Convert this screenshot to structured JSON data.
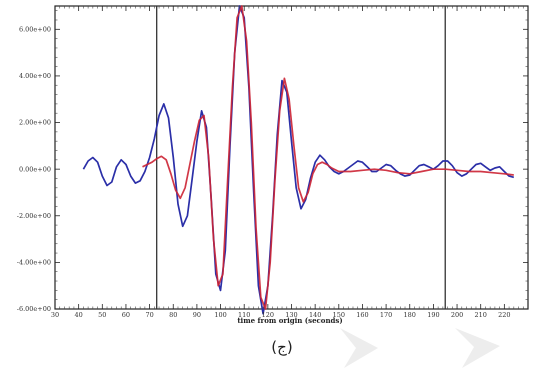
{
  "chart_data": {
    "type": "line",
    "xlabel": "time from origin (seconds)",
    "ylabel": "",
    "xlim": [
      30,
      230
    ],
    "ylim": [
      -6.0,
      7.0
    ],
    "x_ticks": [
      30,
      40,
      50,
      60,
      70,
      80,
      90,
      100,
      110,
      120,
      130,
      140,
      150,
      160,
      170,
      180,
      190,
      200,
      210,
      220
    ],
    "x_tick_labels": [
      "30",
      "40",
      "50",
      "60",
      "70",
      "80",
      "90",
      "100",
      "110",
      "120",
      "130",
      "140",
      "150",
      "160",
      "170",
      "180",
      "190",
      "200",
      "210",
      "220"
    ],
    "y_ticks": [
      -6,
      -4,
      -2,
      0,
      2,
      4,
      6
    ],
    "y_tick_labels": [
      "-6.00e+00",
      "-4.00e+00",
      "-2.00e+00",
      "0.00e+00",
      "2.00e+00",
      "4.00e+00",
      "6.00e+00"
    ],
    "vertical_lines": [
      73,
      195
    ],
    "series": [
      {
        "color": "#2b2fa8",
        "points": [
          [
            42,
            0.0
          ],
          [
            44,
            0.35
          ],
          [
            46,
            0.5
          ],
          [
            48,
            0.3
          ],
          [
            50,
            -0.3
          ],
          [
            52,
            -0.7
          ],
          [
            54,
            -0.55
          ],
          [
            56,
            0.1
          ],
          [
            58,
            0.4
          ],
          [
            60,
            0.2
          ],
          [
            62,
            -0.3
          ],
          [
            64,
            -0.6
          ],
          [
            66,
            -0.5
          ],
          [
            68,
            -0.1
          ],
          [
            70,
            0.5
          ],
          [
            72,
            1.3
          ],
          [
            74,
            2.3
          ],
          [
            76,
            2.8
          ],
          [
            78,
            2.2
          ],
          [
            80,
            0.5
          ],
          [
            82,
            -1.5
          ],
          [
            84,
            -2.45
          ],
          [
            86,
            -2.0
          ],
          [
            88,
            -0.4
          ],
          [
            90,
            1.2
          ],
          [
            92,
            2.5
          ],
          [
            94,
            1.8
          ],
          [
            96,
            -1.2
          ],
          [
            98,
            -4.5
          ],
          [
            100,
            -5.2
          ],
          [
            102,
            -3.5
          ],
          [
            104,
            1.0
          ],
          [
            106,
            5.0
          ],
          [
            108,
            7.0
          ],
          [
            110,
            6.5
          ],
          [
            112,
            3.5
          ],
          [
            114,
            -1.0
          ],
          [
            116,
            -5.0
          ],
          [
            118,
            -6.2
          ],
          [
            120,
            -5.0
          ],
          [
            122,
            -2.0
          ],
          [
            124,
            1.5
          ],
          [
            126,
            3.8
          ],
          [
            128,
            3.3
          ],
          [
            130,
            1.2
          ],
          [
            132,
            -0.8
          ],
          [
            134,
            -1.7
          ],
          [
            136,
            -1.3
          ],
          [
            138,
            -0.4
          ],
          [
            140,
            0.3
          ],
          [
            142,
            0.6
          ],
          [
            144,
            0.4
          ],
          [
            146,
            0.1
          ],
          [
            148,
            -0.1
          ],
          [
            150,
            -0.2
          ],
          [
            152,
            -0.1
          ],
          [
            154,
            0.05
          ],
          [
            156,
            0.2
          ],
          [
            158,
            0.35
          ],
          [
            160,
            0.3
          ],
          [
            162,
            0.1
          ],
          [
            164,
            -0.1
          ],
          [
            166,
            -0.1
          ],
          [
            168,
            0.05
          ],
          [
            170,
            0.2
          ],
          [
            172,
            0.15
          ],
          [
            174,
            -0.05
          ],
          [
            176,
            -0.2
          ],
          [
            178,
            -0.3
          ],
          [
            180,
            -0.25
          ],
          [
            182,
            -0.05
          ],
          [
            184,
            0.15
          ],
          [
            186,
            0.2
          ],
          [
            188,
            0.1
          ],
          [
            190,
            0.0
          ],
          [
            192,
            0.15
          ],
          [
            194,
            0.35
          ],
          [
            196,
            0.35
          ],
          [
            198,
            0.15
          ],
          [
            200,
            -0.15
          ],
          [
            202,
            -0.3
          ],
          [
            204,
            -0.2
          ],
          [
            206,
            0.0
          ],
          [
            208,
            0.2
          ],
          [
            210,
            0.25
          ],
          [
            212,
            0.1
          ],
          [
            214,
            -0.05
          ],
          [
            216,
            0.05
          ],
          [
            218,
            0.1
          ],
          [
            220,
            -0.1
          ],
          [
            222,
            -0.3
          ],
          [
            224,
            -0.35
          ]
        ]
      },
      {
        "color": "#cc2233",
        "points": [
          [
            67,
            0.1
          ],
          [
            69,
            0.2
          ],
          [
            71,
            0.3
          ],
          [
            73,
            0.45
          ],
          [
            75,
            0.55
          ],
          [
            77,
            0.4
          ],
          [
            79,
            -0.2
          ],
          [
            81,
            -0.9
          ],
          [
            83,
            -1.25
          ],
          [
            85,
            -0.8
          ],
          [
            87,
            0.2
          ],
          [
            89,
            1.2
          ],
          [
            91,
            2.1
          ],
          [
            93,
            2.3
          ],
          [
            95,
            0.5
          ],
          [
            97,
            -3.0
          ],
          [
            99,
            -5.0
          ],
          [
            101,
            -4.5
          ],
          [
            103,
            -0.5
          ],
          [
            105,
            3.5
          ],
          [
            107,
            6.5
          ],
          [
            109,
            7.0
          ],
          [
            111,
            5.5
          ],
          [
            113,
            2.0
          ],
          [
            115,
            -2.5
          ],
          [
            117,
            -5.5
          ],
          [
            119,
            -6.0
          ],
          [
            121,
            -4.0
          ],
          [
            123,
            -0.5
          ],
          [
            125,
            2.5
          ],
          [
            127,
            3.9
          ],
          [
            129,
            3.0
          ],
          [
            131,
            1.0
          ],
          [
            133,
            -0.8
          ],
          [
            135,
            -1.4
          ],
          [
            137,
            -1.0
          ],
          [
            139,
            -0.2
          ],
          [
            141,
            0.2
          ],
          [
            143,
            0.3
          ],
          [
            145,
            0.2
          ],
          [
            147,
            0.05
          ],
          [
            150,
            -0.1
          ],
          [
            155,
            -0.1
          ],
          [
            160,
            -0.05
          ],
          [
            165,
            0.0
          ],
          [
            170,
            -0.05
          ],
          [
            175,
            -0.15
          ],
          [
            180,
            -0.2
          ],
          [
            185,
            -0.1
          ],
          [
            190,
            0.0
          ],
          [
            195,
            0.0
          ],
          [
            200,
            -0.05
          ],
          [
            205,
            -0.1
          ],
          [
            210,
            -0.1
          ],
          [
            215,
            -0.15
          ],
          [
            220,
            -0.2
          ],
          [
            224,
            -0.25
          ]
        ]
      }
    ]
  },
  "caption": "(ج)"
}
